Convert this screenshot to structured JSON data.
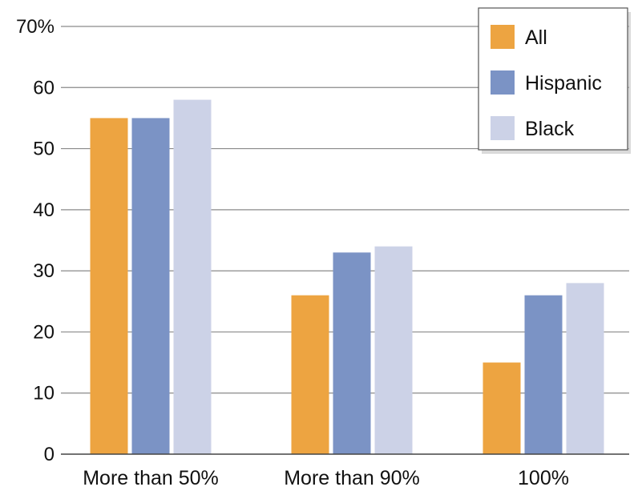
{
  "chart_data": {
    "type": "bar",
    "title": "",
    "xlabel": "",
    "ylabel": "",
    "categories": [
      "More than 50%",
      "More than 90%",
      "100%"
    ],
    "series": [
      {
        "name": "All",
        "values": [
          55,
          26,
          15
        ],
        "color": "#EDA441"
      },
      {
        "name": "Hispanic",
        "values": [
          55,
          33,
          26
        ],
        "color": "#7B93C5"
      },
      {
        "name": "Black",
        "values": [
          58,
          34,
          28
        ],
        "color": "#CCD2E7"
      }
    ],
    "ylim": [
      0,
      70
    ],
    "yticks": [
      0,
      10,
      20,
      30,
      40,
      50,
      60,
      70
    ],
    "ytick_labels": [
      "0",
      "10",
      "20",
      "30",
      "40",
      "50",
      "60",
      "70%"
    ],
    "grid": true,
    "legend_position": "top-right"
  }
}
